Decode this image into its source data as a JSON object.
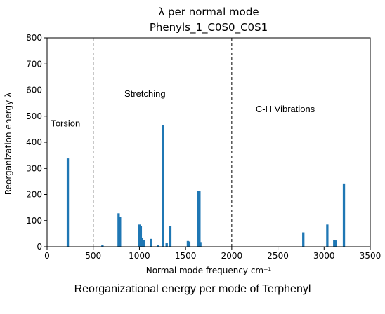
{
  "chart_data": {
    "type": "bar",
    "title_line1": "λ per normal mode",
    "title_line2": "Phenyls_1_C0S0_C0S1",
    "xlabel": "Normal mode frequency cm⁻¹",
    "ylabel": "Reorganization energy λ",
    "xlim": [
      0,
      3500
    ],
    "ylim": [
      0,
      800
    ],
    "xticks": [
      0,
      500,
      1000,
      1500,
      2000,
      2500,
      3000,
      3500
    ],
    "yticks": [
      0,
      100,
      200,
      300,
      400,
      500,
      600,
      700,
      800
    ],
    "grid": false,
    "bar_color": "#1f77b4",
    "dividers": [
      500,
      2000
    ],
    "annotations": [
      {
        "text": "Torsion",
        "x": 200,
        "y": 460
      },
      {
        "text": "Stretching",
        "x": 1060,
        "y": 575
      },
      {
        "text": "C-H Vibrations",
        "x": 2580,
        "y": 515
      }
    ],
    "x": [
      225,
      600,
      775,
      790,
      1000,
      1015,
      1030,
      1050,
      1125,
      1200,
      1255,
      1295,
      1335,
      1525,
      1540,
      1635,
      1650,
      1660,
      2775,
      3035,
      3110,
      3125,
      3215
    ],
    "values": [
      338,
      6,
      128,
      113,
      85,
      80,
      35,
      25,
      30,
      7,
      467,
      15,
      78,
      22,
      20,
      213,
      212,
      18,
      55,
      85,
      25,
      24,
      242
    ],
    "bar_width": 25
  },
  "caption": "Reorganizational energy per mode of Terphenyl"
}
